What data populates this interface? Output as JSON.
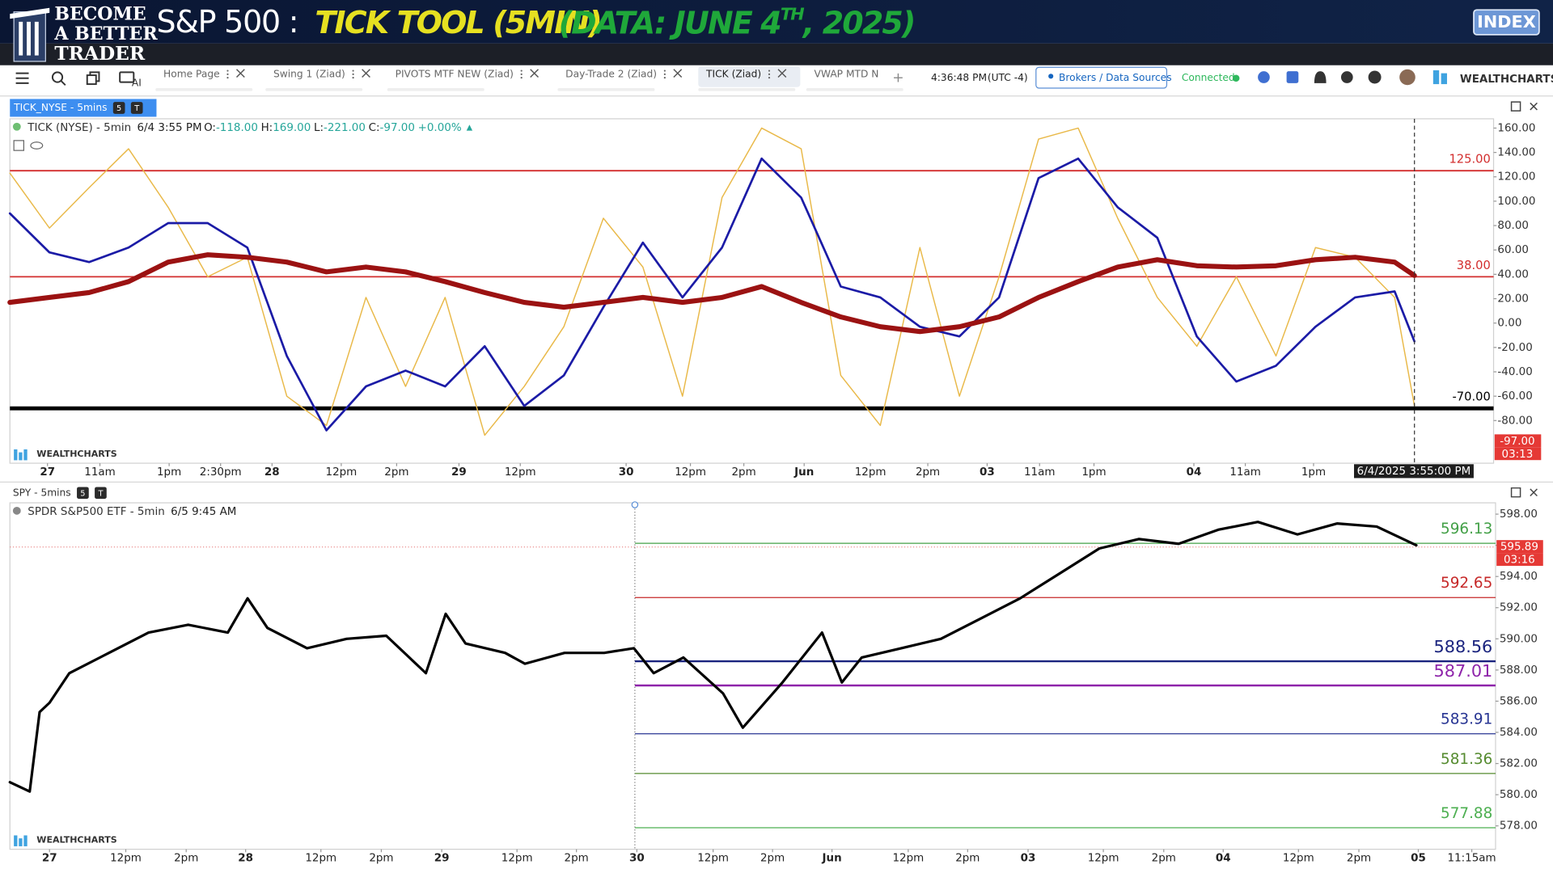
{
  "header": {
    "logo": [
      "BECOME",
      "A BETTER",
      "TRADER"
    ],
    "title": "S&P 500 :",
    "subtitle": "TICK TOOL (5MIN)",
    "date_a": "(DATA: JUNE 4",
    "date_sup": "TH",
    "date_b": ", 2025)",
    "badge": "INDEX"
  },
  "toolbar": {
    "ai": "AI",
    "tabs": [
      "Home Page",
      "Swing 1 (Ziad)",
      "PIVOTS MTF NEW (Ziad)",
      "Day-Trade 2 (Ziad)",
      "TICK (Ziad)",
      "VWAP MTD N"
    ],
    "active_tab": 4,
    "time": "4:36:48 PM",
    "timezone": "(UTC -4)",
    "brokers": "Brokers / Data Sources",
    "status": "Connected",
    "brand": "WEALTHCHARTS"
  },
  "chart_data": [
    {
      "type": "line",
      "label": "TICK_NYSE - 5mins",
      "badges": [
        "5",
        "T"
      ],
      "legend": {
        "name": "TICK (NYSE) - 5min",
        "time": "6/4 3:55 PM",
        "ohlc": [
          {
            "key": "O:",
            "text": "-118.00"
          },
          {
            "key": "H:",
            "text": "169.00"
          },
          {
            "key": "L:",
            "text": "-221.00"
          },
          {
            "key": "C:",
            "text": "-97.00"
          }
        ],
        "change": "+0.00%"
      },
      "xlim": [
        0,
        150
      ],
      "ylim": [
        -115,
        166
      ],
      "yticks": [
        {
          "value": 160,
          "label": "160.00"
        },
        {
          "value": 140,
          "label": "140.00"
        },
        {
          "value": 120,
          "label": "120.00"
        },
        {
          "value": 100,
          "label": "100.00"
        },
        {
          "value": 80,
          "label": "80.00"
        },
        {
          "value": 60,
          "label": "60.00"
        },
        {
          "value": 40,
          "label": "40.00"
        },
        {
          "value": 20,
          "label": "20.00"
        },
        {
          "value": 0,
          "label": "0.00"
        },
        {
          "value": -20,
          "label": "-20.00"
        },
        {
          "value": -40,
          "label": "-40.00"
        },
        {
          "value": -60,
          "label": "-60.00"
        },
        {
          "value": -80,
          "label": "-80.00"
        }
      ],
      "xticks": [
        {
          "value": 3.8,
          "label": "27"
        },
        {
          "value": 9.1,
          "label": "11am"
        },
        {
          "value": 16.1,
          "label": "1pm"
        },
        {
          "value": 21.3,
          "label": "2:30pm"
        },
        {
          "value": 26.5,
          "label": "28"
        },
        {
          "value": 33.5,
          "label": "12pm"
        },
        {
          "value": 39.1,
          "label": "2pm"
        },
        {
          "value": 45.4,
          "label": "29"
        },
        {
          "value": 51.6,
          "label": "12pm"
        },
        {
          "value": 62.3,
          "label": "30"
        },
        {
          "value": 68.8,
          "label": "12pm"
        },
        {
          "value": 74.2,
          "label": "2pm"
        },
        {
          "value": 80.3,
          "label": "Jun"
        },
        {
          "value": 87.0,
          "label": "12pm"
        },
        {
          "value": 92.8,
          "label": "2pm"
        },
        {
          "value": 98.8,
          "label": "03"
        },
        {
          "value": 104.1,
          "label": "11am"
        },
        {
          "value": 109.6,
          "label": "1pm"
        },
        {
          "value": 119.7,
          "label": "04"
        },
        {
          "value": 124.9,
          "label": "11am"
        },
        {
          "value": 131.8,
          "label": "1pm"
        }
      ],
      "x": [
        0,
        4,
        8,
        12,
        16,
        20,
        24,
        28,
        32,
        36,
        40,
        44,
        48,
        52,
        56,
        60,
        64,
        68,
        72,
        76,
        80,
        84,
        88,
        92,
        96,
        100,
        104,
        108,
        112,
        116,
        120,
        124,
        128,
        132,
        136,
        140,
        142
      ],
      "series": [
        {
          "color": "#e9b949",
          "width": 1.2,
          "values": [
            123,
            78,
            111,
            143,
            95,
            38,
            54,
            -60,
            -84,
            21,
            -52,
            21,
            -92,
            -52,
            -3,
            86,
            46,
            -60,
            103,
            160,
            143,
            -43,
            -84,
            62,
            -60,
            38,
            151,
            160,
            86,
            21,
            -19,
            38,
            -27,
            62,
            54,
            21,
            -68
          ]
        },
        {
          "color": "#1b1ba6",
          "width": 2.2,
          "values": [
            90,
            58,
            50,
            62,
            82,
            82,
            62,
            -27,
            -88,
            -52,
            -39,
            -52,
            -19,
            -68,
            -43,
            13,
            66,
            21,
            62,
            135,
            103,
            30,
            21,
            -3,
            -11,
            21,
            119,
            135,
            95,
            70,
            -11,
            -48,
            -35,
            -3,
            21,
            26,
            -15
          ]
        },
        {
          "color": "#9b1212",
          "width": 5,
          "values": [
            17,
            21,
            25,
            34,
            50,
            56,
            54,
            50,
            42,
            46,
            42,
            34,
            25,
            17,
            13,
            17,
            21,
            17,
            21,
            30,
            17,
            5,
            -3,
            -7,
            -3,
            5,
            21,
            34,
            46,
            52,
            47,
            46,
            47,
            52,
            54,
            50,
            39
          ]
        }
      ],
      "levels": [
        {
          "value": 125,
          "label": "125.00",
          "color": "#d32f2f",
          "width": 1.5
        },
        {
          "value": 38,
          "label": "38.00",
          "color": "#d32f2f",
          "width": 1.5
        },
        {
          "value": -70,
          "label": "-70.00",
          "color": "#000000",
          "width": 4
        }
      ],
      "last": {
        "value": -97,
        "label": "-97.00",
        "countdown": "03:13",
        "color": "#e53935"
      },
      "cursor": {
        "x": 142,
        "label": "6/4/2025 3:55:00 PM"
      },
      "watermark": "WEALTHCHARTS"
    },
    {
      "type": "line",
      "label": "SPY - 5mins",
      "badges": [
        "5",
        "T"
      ],
      "legend": {
        "name": "SPDR S&P500 ETF - 5min",
        "time": "6/5 9:45 AM"
      },
      "xlim": [
        0,
        150
      ],
      "ylim": [
        576.5,
        598.6
      ],
      "yticks": [
        {
          "value": 598,
          "label": "598.00"
        },
        {
          "value": 596,
          "label": "596.00"
        },
        {
          "value": 594,
          "label": "594.00"
        },
        {
          "value": 592,
          "label": "592.00"
        },
        {
          "value": 590,
          "label": "590.00"
        },
        {
          "value": 588,
          "label": "588.00"
        },
        {
          "value": 586,
          "label": "586.00"
        },
        {
          "value": 584,
          "label": "584.00"
        },
        {
          "value": 582,
          "label": "582.00"
        },
        {
          "value": 580,
          "label": "580.00"
        },
        {
          "value": 578,
          "label": "578.00"
        }
      ],
      "xticks": [
        {
          "value": 4,
          "label": "27"
        },
        {
          "value": 11.7,
          "label": "12pm"
        },
        {
          "value": 17.8,
          "label": "2pm"
        },
        {
          "value": 23.8,
          "label": "28"
        },
        {
          "value": 31.4,
          "label": "12pm"
        },
        {
          "value": 37.5,
          "label": "2pm"
        },
        {
          "value": 43.6,
          "label": "29"
        },
        {
          "value": 51.2,
          "label": "12pm"
        },
        {
          "value": 57.2,
          "label": "2pm"
        },
        {
          "value": 63.3,
          "label": "30"
        },
        {
          "value": 71,
          "label": "12pm"
        },
        {
          "value": 77,
          "label": "2pm"
        },
        {
          "value": 83,
          "label": "Jun"
        },
        {
          "value": 90.7,
          "label": "12pm"
        },
        {
          "value": 96.7,
          "label": "2pm"
        },
        {
          "value": 102.8,
          "label": "03"
        },
        {
          "value": 110.4,
          "label": "12pm"
        },
        {
          "value": 116.5,
          "label": "2pm"
        },
        {
          "value": 122.5,
          "label": "04"
        },
        {
          "value": 130.1,
          "label": "12pm"
        },
        {
          "value": 136.2,
          "label": "2pm"
        },
        {
          "value": 142.2,
          "label": "05"
        },
        {
          "value": 147.6,
          "label": "11:15am"
        }
      ],
      "x": [
        0,
        2,
        3,
        4,
        6,
        10,
        14,
        18,
        22,
        24,
        26,
        30,
        34,
        38,
        42,
        44,
        46,
        50,
        52,
        56,
        60,
        63,
        65,
        68,
        72,
        74,
        78,
        82,
        84,
        86,
        90,
        94,
        98,
        102,
        106,
        110,
        114,
        118,
        122,
        126,
        130,
        134,
        138,
        142
      ],
      "series": [
        {
          "color": "#000000",
          "width": 2.6,
          "values": [
            580.8,
            580.2,
            585.3,
            585.9,
            587.8,
            589.1,
            590.4,
            590.9,
            590.4,
            592.6,
            590.7,
            589.4,
            590.0,
            590.2,
            587.8,
            591.6,
            589.7,
            589.1,
            588.4,
            589.1,
            589.1,
            589.4,
            587.8,
            588.8,
            586.5,
            584.3,
            587.2,
            590.4,
            587.2,
            588.8,
            589.4,
            590.0,
            591.3,
            592.6,
            594.2,
            595.8,
            596.4,
            596.1,
            597.0,
            597.5,
            596.7,
            597.4,
            597.2,
            596.0
          ]
        }
      ],
      "level_start_x": 63.1,
      "levels": [
        {
          "value": 596.13,
          "label": "596.13",
          "color": "#43a047",
          "width": 1
        },
        {
          "value": 592.65,
          "label": "592.65",
          "color": "#c62828",
          "width": 1
        },
        {
          "value": 588.56,
          "label": "588.56",
          "color": "#1a237e",
          "width": 2
        },
        {
          "value": 587.01,
          "label": "587.01",
          "color": "#8e24aa",
          "width": 2
        },
        {
          "value": 583.91,
          "label": "583.91",
          "color": "#283593",
          "width": 1
        },
        {
          "value": 581.36,
          "label": "581.36",
          "color": "#558b2f",
          "width": 1
        },
        {
          "value": 577.88,
          "label": "577.88",
          "color": "#4caf50",
          "width": 1
        }
      ],
      "last": {
        "value": 595.89,
        "label": "595.89",
        "countdown": "03:16",
        "color": "#e53935"
      },
      "watermark": "WEALTHCHARTS"
    }
  ]
}
